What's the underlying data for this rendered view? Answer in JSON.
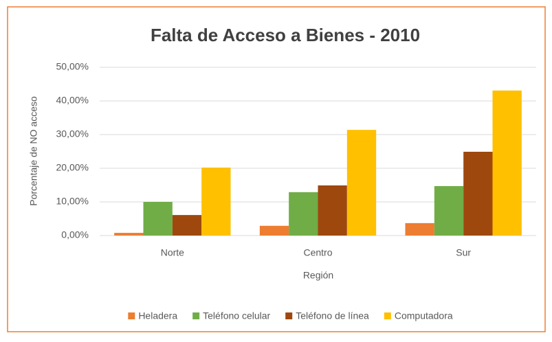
{
  "chart_data": {
    "type": "bar",
    "title": "Falta de Acceso a Bienes - 2010",
    "x_label": "Región",
    "y_label": "Porcentaje de NO acceso",
    "categories": [
      "Norte",
      "Centro",
      "Sur"
    ],
    "series": [
      {
        "name": "Heladera",
        "color": "#ed7d31",
        "values": [
          0.8,
          2.9,
          3.7
        ]
      },
      {
        "name": "Teléfono celular",
        "color": "#70ad47",
        "values": [
          10.0,
          12.9,
          14.7
        ]
      },
      {
        "name": "Teléfono de línea",
        "color": "#9e480e",
        "values": [
          6.1,
          14.9,
          24.9
        ]
      },
      {
        "name": "Computadora",
        "color": "#ffc000",
        "values": [
          20.2,
          31.4,
          43.1
        ]
      }
    ],
    "ylim": [
      0,
      50
    ],
    "yticks": [
      {
        "value": 0,
        "label": "0,00%"
      },
      {
        "value": 10,
        "label": "10,00%"
      },
      {
        "value": 20,
        "label": "20,00%"
      },
      {
        "value": 30,
        "label": "30,00%"
      },
      {
        "value": 40,
        "label": "40,00%"
      },
      {
        "value": 50,
        "label": "50,00%"
      }
    ],
    "grid": true,
    "legend": "bottom"
  }
}
